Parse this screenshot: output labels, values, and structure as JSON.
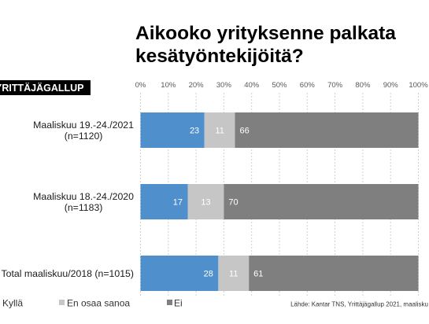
{
  "badge": {
    "label": "YRITTÄJÄGALLUP"
  },
  "chart_data": {
    "type": "bar",
    "orientation": "horizontal",
    "stacked": true,
    "title": "Aikooko yrityksenne palkata kesätyöntekijöitä?",
    "categories": [
      "Maaliskuu 19.-24./2021\n(n=1120)",
      "Maaliskuu 18.-24./2020\n(n=1183)",
      "Total maaliskuu/2018 (n=1015)"
    ],
    "series": [
      {
        "name": "Kyllä",
        "values": [
          23,
          17,
          28
        ],
        "color": "#4f8fcc"
      },
      {
        "name": "En osaa sanoa",
        "values": [
          11,
          13,
          11
        ],
        "color": "#c6c6c6"
      },
      {
        "name": "Ei",
        "values": [
          66,
          70,
          61
        ],
        "color": "#7f7f7f"
      }
    ],
    "xlim": [
      0,
      100
    ],
    "x_ticks": [
      "0%",
      "10%",
      "20%",
      "30%",
      "40%",
      "50%",
      "60%",
      "70%",
      "80%",
      "90%",
      "100%"
    ],
    "grid": true,
    "legend_position": "bottom",
    "source": "Lähde: Kantar TNS, Yrittäjägallup 2021, maalisku"
  }
}
